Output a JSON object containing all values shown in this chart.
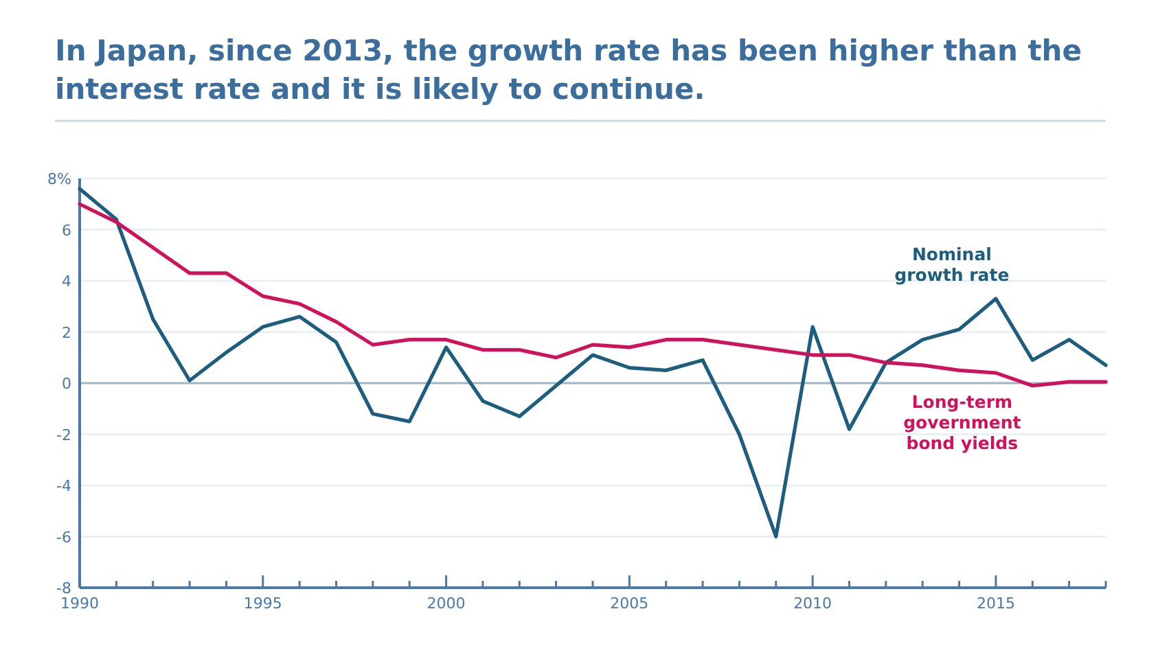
{
  "chart_data": {
    "type": "line",
    "title": "In Japan, since 2013, the growth rate has been higher than the interest rate and it is likely to continue.",
    "x": [
      1990,
      1991,
      1992,
      1993,
      1994,
      1995,
      1996,
      1997,
      1998,
      1999,
      2000,
      2001,
      2002,
      2003,
      2004,
      2005,
      2006,
      2007,
      2008,
      2009,
      2010,
      2011,
      2012,
      2013,
      2014,
      2015,
      2016,
      2017,
      2018
    ],
    "series": [
      {
        "name": "Nominal growth rate",
        "color": "#1d5d7e",
        "values": [
          7.6,
          6.4,
          2.5,
          0.1,
          1.2,
          2.2,
          2.6,
          1.6,
          -1.2,
          -1.5,
          1.4,
          -0.7,
          -1.3,
          -0.1,
          1.1,
          0.6,
          0.5,
          0.9,
          -2.0,
          -6.0,
          2.2,
          -1.8,
          0.8,
          1.7,
          2.1,
          3.3,
          0.9,
          1.7,
          0.7
        ]
      },
      {
        "name": "Long-term government bond yields",
        "color": "#d0115b",
        "values": [
          7.0,
          6.3,
          5.3,
          4.3,
          4.3,
          3.4,
          3.1,
          2.4,
          1.5,
          1.7,
          1.7,
          1.3,
          1.3,
          1.0,
          1.5,
          1.4,
          1.7,
          1.7,
          1.5,
          1.3,
          1.1,
          1.1,
          0.8,
          0.7,
          0.5,
          0.4,
          -0.1,
          0.05,
          0.05
        ]
      }
    ],
    "xlim": [
      1990,
      2018
    ],
    "xticks": [
      1990,
      {
        "value": 1991,
        "label": null
      },
      {
        "value": 1992,
        "label": null
      },
      {
        "value": 1993,
        "label": null
      },
      {
        "value": 1994,
        "label": null
      },
      1995,
      {
        "value": 1996,
        "label": null
      },
      {
        "value": 1997,
        "label": null
      },
      {
        "value": 1998,
        "label": null
      },
      {
        "value": 1999,
        "label": null
      },
      2000,
      {
        "value": 2001,
        "label": null
      },
      {
        "value": 2002,
        "label": null
      },
      {
        "value": 2003,
        "label": null
      },
      {
        "value": 2004,
        "label": null
      },
      2005,
      {
        "value": 2006,
        "label": null
      },
      {
        "value": 2007,
        "label": null
      },
      {
        "value": 2008,
        "label": null
      },
      {
        "value": 2009,
        "label": null
      },
      2010,
      {
        "value": 2011,
        "label": null
      },
      {
        "value": 2012,
        "label": null
      },
      {
        "value": 2013,
        "label": null
      },
      {
        "value": 2014,
        "label": null
      },
      2015,
      {
        "value": 2016,
        "label": null
      },
      {
        "value": 2017,
        "label": null
      },
      {
        "value": 2018,
        "label": null
      }
    ],
    "ylim": [
      -8,
      8
    ],
    "yticks": [
      -8,
      -6,
      -4,
      -2,
      0,
      2,
      4,
      6,
      {
        "value": 8,
        "label": "8%"
      }
    ],
    "ref_lines": [
      {
        "axis": "y",
        "value": 0,
        "color": "#9fb6c8"
      }
    ],
    "grid": "y",
    "legend": false,
    "marker": "none",
    "line_style": "solid"
  }
}
